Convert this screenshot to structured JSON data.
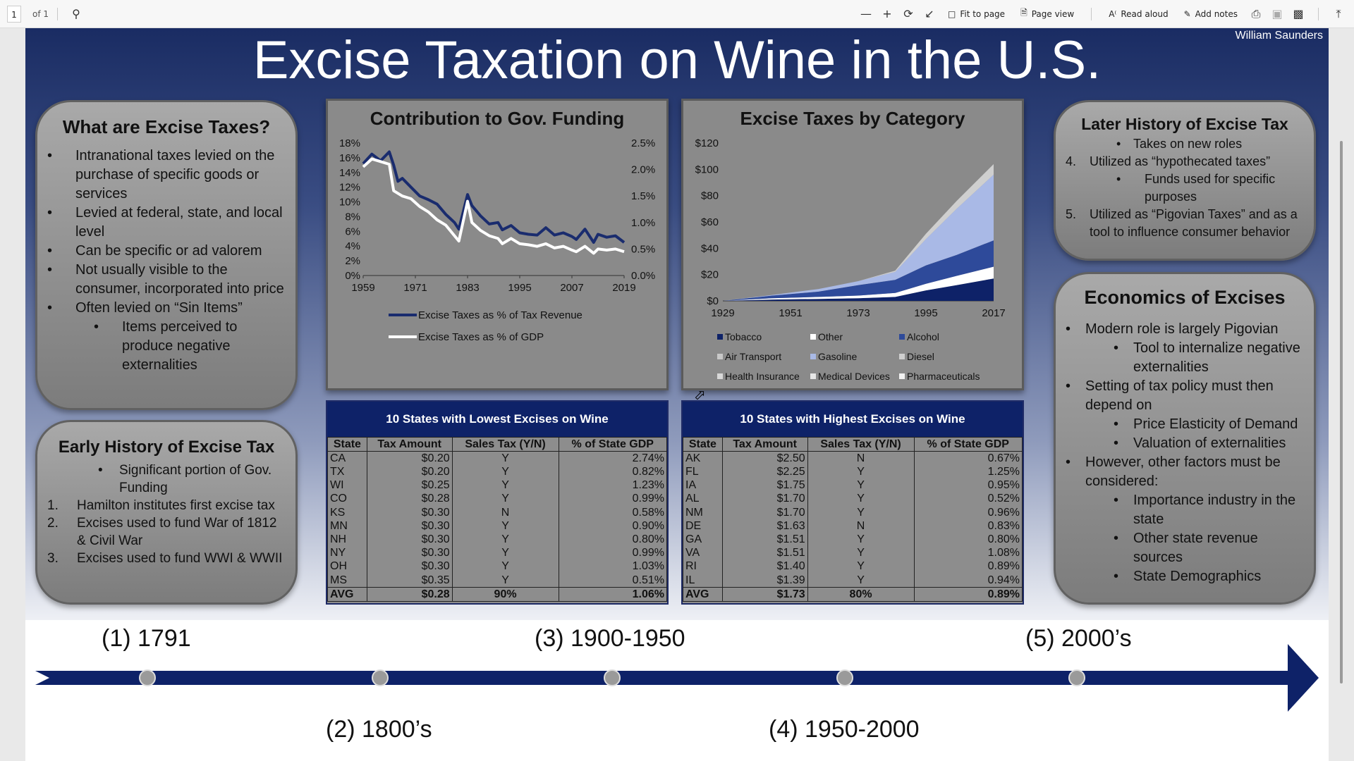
{
  "toolbar": {
    "page_number": "1",
    "page_of": "of 1",
    "fit_to_page": "Fit to page",
    "page_view": "Page view",
    "read_aloud": "Read aloud",
    "add_notes": "Add notes"
  },
  "poster": {
    "title": "Excise Taxation on Wine in the U.S.",
    "author": "William Saunders",
    "what_are": {
      "title": "What are Excise Taxes?",
      "bullets": [
        "Intranational taxes levied on the purchase of specific goods or services",
        "Levied at federal, state, and local level",
        "Can be specific or ad valorem",
        "Not usually visible to the consumer, incorporated into price",
        "Often levied on “Sin Items”"
      ],
      "sub_bullet": "Items perceived to produce negative externalities"
    },
    "early_history": {
      "title": "Early History of Excise Tax",
      "sub_bullet": "Significant portion of Gov. Funding",
      "items": [
        {
          "num": "1.",
          "text": "Hamilton institutes first excise tax"
        },
        {
          "num": "2.",
          "text": "Excises used to fund War of 1812 & Civil War"
        },
        {
          "num": "3.",
          "text": "Excises used to fund WWI & WWII"
        }
      ]
    },
    "later_history": {
      "title": "Later History of Excise Tax",
      "sub_1": "Takes on new roles",
      "item_4_num": "4.",
      "item_4": "Utilized as “hypothecated taxes”",
      "sub_2": "Funds used for specific purposes",
      "item_5_num": "5.",
      "item_5": "Utilized as “Pigovian Taxes” and as a tool to influence consumer behavior"
    },
    "economics": {
      "title": "Economics of Excises",
      "b1": "Modern role is largely Pigovian",
      "b1s": "Tool to internalize negative externalities",
      "b2": "Setting of tax policy must then depend on",
      "b2s1": "Price Elasticity of Demand",
      "b2s2": "Valuation of externalities",
      "b3": "However, other factors must be considered:",
      "b3s1": "Importance industry in the state",
      "b3s2": "Other state revenue sources",
      "b3s3": "State Demographics"
    },
    "lowest_table": {
      "title": "10 States with Lowest Excises on Wine",
      "headers": [
        "State",
        "Tax Amount",
        "Sales Tax (Y/N)",
        "% of State GDP"
      ],
      "rows": [
        [
          "CA",
          "$0.20",
          "Y",
          "2.74%"
        ],
        [
          "TX",
          "$0.20",
          "Y",
          "0.82%"
        ],
        [
          "WI",
          "$0.25",
          "Y",
          "1.23%"
        ],
        [
          "CO",
          "$0.28",
          "Y",
          "0.99%"
        ],
        [
          "KS",
          "$0.30",
          "N",
          "0.58%"
        ],
        [
          "MN",
          "$0.30",
          "Y",
          "0.90%"
        ],
        [
          "NH",
          "$0.30",
          "Y",
          "0.80%"
        ],
        [
          "NY",
          "$0.30",
          "Y",
          "0.99%"
        ],
        [
          "OH",
          "$0.30",
          "Y",
          "1.03%"
        ],
        [
          "MS",
          "$0.35",
          "Y",
          "0.51%"
        ]
      ],
      "avg": [
        "AVG",
        "$0.28",
        "90%",
        "1.06%"
      ]
    },
    "highest_table": {
      "title": "10 States with Highest Excises on Wine",
      "headers": [
        "State",
        "Tax Amount",
        "Sales Tax (Y/N)",
        "% of State GDP"
      ],
      "rows": [
        [
          "AK",
          "$2.50",
          "N",
          "0.67%"
        ],
        [
          "FL",
          "$2.25",
          "Y",
          "1.25%"
        ],
        [
          "IA",
          "$1.75",
          "Y",
          "0.95%"
        ],
        [
          "AL",
          "$1.70",
          "Y",
          "0.52%"
        ],
        [
          "NM",
          "$1.70",
          "Y",
          "0.96%"
        ],
        [
          "DE",
          "$1.63",
          "N",
          "0.83%"
        ],
        [
          "GA",
          "$1.51",
          "Y",
          "0.80%"
        ],
        [
          "VA",
          "$1.51",
          "Y",
          "1.08%"
        ],
        [
          "RI",
          "$1.40",
          "Y",
          "0.89%"
        ],
        [
          "IL",
          "$1.39",
          "Y",
          "0.94%"
        ]
      ],
      "avg": [
        "AVG",
        "$1.73",
        "80%",
        "0.89%"
      ]
    },
    "timeline": [
      "(1) 1791",
      "(2) 1800’s",
      "(3) 1900-1950",
      "(4) 1950-2000",
      "(5) 2000’s"
    ]
  },
  "colors": {
    "navy": "#0e2268",
    "chart_line_dark": "#1a2c6e",
    "chart_line_light": "#ffffff"
  },
  "chart_data": [
    {
      "type": "line",
      "title": "Contribution to Gov. Funding",
      "x_ticks": [
        "1959",
        "1971",
        "1983",
        "1995",
        "2007",
        "2019"
      ],
      "y_left_ticks": [
        "0%",
        "2%",
        "4%",
        "6%",
        "8%",
        "10%",
        "12%",
        "14%",
        "16%",
        "18%"
      ],
      "y_right_ticks": [
        "0.0%",
        "0.5%",
        "1.0%",
        "1.5%",
        "2.0%",
        "2.5%"
      ],
      "y_left_range": [
        0,
        18
      ],
      "y_right_range": [
        0,
        2.5
      ],
      "x_range": [
        1959,
        2019
      ],
      "series": [
        {
          "name": "Excise Taxes as % of Tax Revenue",
          "axis": "left",
          "x": [
            1959,
            1961,
            1963,
            1965,
            1966,
            1967,
            1968,
            1970,
            1972,
            1974,
            1976,
            1978,
            1980,
            1981,
            1983,
            1984,
            1986,
            1988,
            1990,
            1991,
            1993,
            1995,
            1997,
            1999,
            2001,
            2003,
            2005,
            2007,
            2008,
            2010,
            2012,
            2013,
            2015,
            2017,
            2019
          ],
          "y": [
            15.2,
            16.5,
            15.6,
            16.8,
            15,
            12.8,
            13.2,
            12,
            10.8,
            10.3,
            9.7,
            8.3,
            7.2,
            6.3,
            11,
            9.5,
            8.1,
            7,
            7.2,
            6.2,
            6.8,
            5.8,
            5.6,
            5.5,
            6.5,
            5.5,
            5.8,
            5.3,
            4.9,
            6.3,
            4.5,
            5.6,
            5.2,
            5.4,
            4.5
          ]
        },
        {
          "name": "Excise Taxes as % of GDP",
          "axis": "right",
          "x": [
            1959,
            1961,
            1963,
            1965,
            1966,
            1967,
            1968,
            1970,
            1972,
            1974,
            1976,
            1978,
            1980,
            1981,
            1983,
            1984,
            1986,
            1988,
            1990,
            1991,
            1993,
            1995,
            1997,
            1999,
            2001,
            2003,
            2005,
            2007,
            2008,
            2010,
            2012,
            2013,
            2015,
            2017,
            2019
          ],
          "y": [
            2.05,
            2.2,
            2.15,
            2.1,
            1.6,
            1.55,
            1.5,
            1.45,
            1.3,
            1.2,
            1.05,
            0.95,
            0.75,
            0.65,
            1.4,
            1.0,
            0.85,
            0.75,
            0.7,
            0.6,
            0.7,
            0.6,
            0.58,
            0.55,
            0.6,
            0.52,
            0.55,
            0.48,
            0.45,
            0.55,
            0.42,
            0.5,
            0.48,
            0.5,
            0.45
          ]
        }
      ]
    },
    {
      "type": "area",
      "title": "Excise Taxes by Category",
      "x_ticks": [
        "1929",
        "1951",
        "1973",
        "1995",
        "2017"
      ],
      "y_ticks": [
        "$0",
        "$20",
        "$40",
        "$60",
        "$80",
        "$100",
        "$120"
      ],
      "y_range": [
        0,
        120
      ],
      "x_range": [
        1929,
        2017
      ],
      "legend": [
        "Tobacco",
        "Other",
        "Alcohol",
        "Air Transport",
        "Gasoline",
        "Diesel",
        "Health Insurance",
        "Medical Devices",
        "Pharmaceuticals"
      ],
      "series": [
        {
          "name": "Tobacco",
          "values": [
            0,
            1,
            1.5,
            2,
            3,
            8,
            12,
            17
          ]
        },
        {
          "name": "Other",
          "values": [
            0,
            1,
            1.5,
            2,
            3,
            5,
            7,
            9
          ]
        },
        {
          "name": "Alcohol",
          "values": [
            0,
            2,
            4,
            8,
            10,
            14,
            16,
            20
          ]
        },
        {
          "name": "Gasoline",
          "values": [
            0,
            0.5,
            2,
            3,
            6,
            20,
            35,
            50
          ]
        },
        {
          "name": "Diesel",
          "values": [
            0,
            0,
            0,
            0,
            1,
            4,
            6,
            8
          ]
        }
      ],
      "x": [
        1929,
        1945,
        1960,
        1973,
        1985,
        1995,
        2005,
        2017
      ]
    }
  ]
}
